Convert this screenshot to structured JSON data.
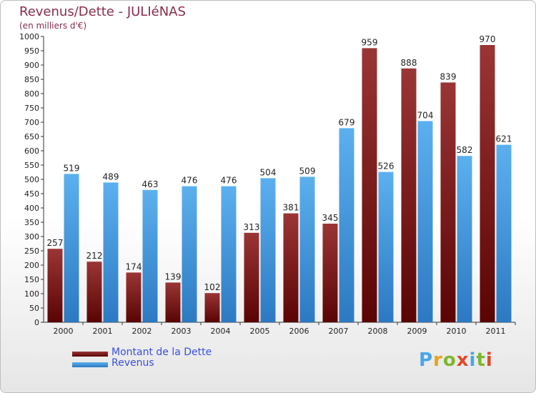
{
  "header": {
    "title": "Revenus/Dette - JULIéNAS",
    "subtitle": "(en milliers d'€)"
  },
  "legend": {
    "items": [
      {
        "label": "Montant de la Dette",
        "color": "#7a1414"
      },
      {
        "label": "Revenus",
        "color": "#4a9fe0"
      }
    ]
  },
  "logo": {
    "text": "Proxiti",
    "colors": [
      "#4aa5e8",
      "#e8a21a",
      "#7cb82f",
      "#e04a2a",
      "#4aa5e8",
      "#7cb82f",
      "#e04a2a"
    ]
  },
  "chart_data": {
    "type": "bar",
    "categories": [
      "2000",
      "2001",
      "2002",
      "2003",
      "2004",
      "2005",
      "2006",
      "2007",
      "2008",
      "2009",
      "2010",
      "2011"
    ],
    "series": [
      {
        "name": "Montant de la Dette",
        "color": "#7a1414",
        "values": [
          257,
          212,
          174,
          139,
          102,
          313,
          381,
          345,
          959,
          888,
          839,
          970
        ]
      },
      {
        "name": "Revenus",
        "color": "#4a9fe0",
        "values": [
          519,
          489,
          463,
          476,
          476,
          504,
          509,
          679,
          526,
          704,
          582,
          621
        ]
      }
    ],
    "ylim": [
      0,
      1000
    ],
    "yticks": [
      0,
      50,
      100,
      150,
      200,
      250,
      300,
      350,
      400,
      450,
      500,
      550,
      600,
      650,
      700,
      750,
      800,
      850,
      900,
      950,
      1000
    ],
    "grid": false,
    "legend_position": "bottom-left"
  }
}
